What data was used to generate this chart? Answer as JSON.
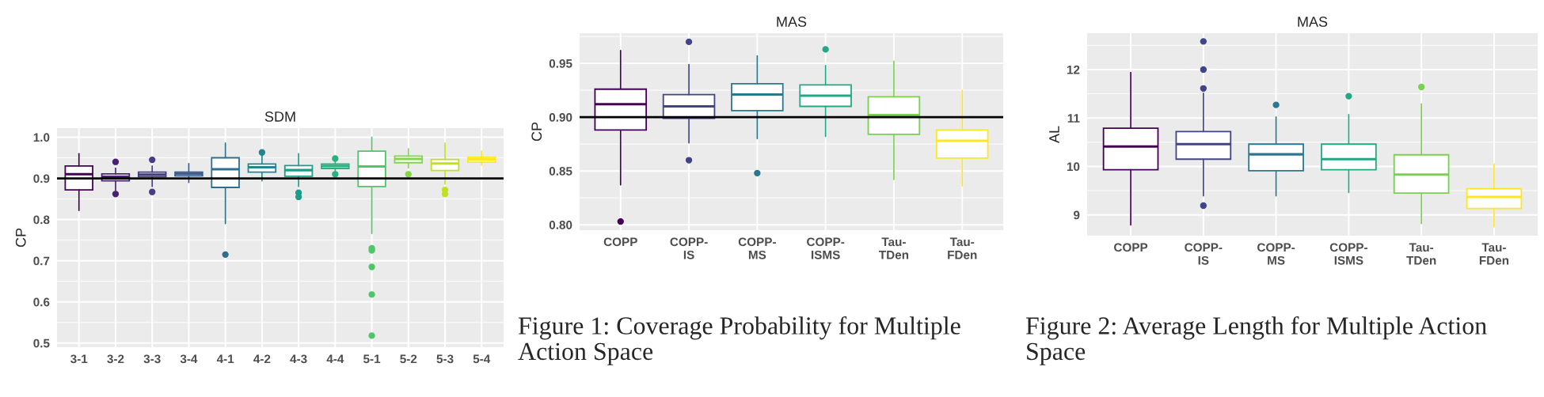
{
  "chart_data": [
    {
      "type": "box",
      "title": "SDM",
      "ylabel": "CP",
      "categories": [
        "3-1",
        "3-2",
        "3-3",
        "3-4",
        "4-1",
        "4-2",
        "4-3",
        "4-4",
        "5-1",
        "5-2",
        "5-3",
        "5-4"
      ],
      "colors": [
        "#440154",
        "#482173",
        "#433e85",
        "#38598c",
        "#2d708e",
        "#25858e",
        "#1e9b8a",
        "#2bb07f",
        "#51c56a",
        "#85d54a",
        "#c2df23",
        "#fde725"
      ],
      "boxes": [
        {
          "low": 0.822,
          "q1": 0.872,
          "median": 0.91,
          "q3": 0.93,
          "high": 0.96
        },
        {
          "low": 0.87,
          "q1": 0.894,
          "median": 0.904,
          "q3": 0.911,
          "high": 0.925,
          "outliers": [
            0.94,
            0.862
          ]
        },
        {
          "low": 0.88,
          "q1": 0.904,
          "median": 0.909,
          "q3": 0.915,
          "high": 0.93,
          "outliers": [
            0.945,
            0.867
          ]
        },
        {
          "low": 0.89,
          "q1": 0.906,
          "median": 0.911,
          "q3": 0.915,
          "high": 0.936
        },
        {
          "low": 0.79,
          "q1": 0.878,
          "median": 0.922,
          "q3": 0.95,
          "high": 0.986,
          "outliers": [
            0.715
          ]
        },
        {
          "low": 0.894,
          "q1": 0.915,
          "median": 0.927,
          "q3": 0.935,
          "high": 0.955,
          "outliers": [
            0.963
          ]
        },
        {
          "low": 0.88,
          "q1": 0.905,
          "median": 0.92,
          "q3": 0.931,
          "high": 0.96,
          "outliers": [
            0.865,
            0.855
          ]
        },
        {
          "low": 0.915,
          "q1": 0.924,
          "median": 0.93,
          "q3": 0.935,
          "high": 0.94,
          "outliers": [
            0.948,
            0.91
          ]
        },
        {
          "low": 0.766,
          "q1": 0.88,
          "median": 0.929,
          "q3": 0.966,
          "high": 1.0,
          "outliers": [
            0.73,
            0.725,
            0.685,
            0.618,
            0.518
          ]
        },
        {
          "low": 0.925,
          "q1": 0.938,
          "median": 0.947,
          "q3": 0.954,
          "high": 0.972,
          "outliers": [
            0.91
          ]
        },
        {
          "low": 0.886,
          "q1": 0.919,
          "median": 0.936,
          "q3": 0.946,
          "high": 0.986,
          "outliers": [
            0.872,
            0.862
          ]
        },
        {
          "low": 0.932,
          "q1": 0.939,
          "median": 0.946,
          "q3": 0.951,
          "high": 0.966
        }
      ],
      "ylim": [
        0.49,
        1.022
      ],
      "yticks": [
        0.5,
        0.6,
        0.7,
        0.8,
        0.9,
        {
          "value": 1,
          "label": "1.0"
        }
      ],
      "grid": true,
      "ref_lines": [
        {
          "axis": "y",
          "value": 0.9,
          "color": "#000000"
        }
      ]
    },
    {
      "type": "box",
      "title": "MAS",
      "ylabel": "CP",
      "categories": [
        "COPP",
        "COPP-IS",
        "COPP-MS",
        "COPP-ISMS",
        "Tau-TDen",
        "Tau-FDen"
      ],
      "colors": [
        "#440154",
        "#414487",
        "#2a788e",
        "#22a884",
        "#7ad151",
        "#fde725"
      ],
      "boxes": [
        {
          "low": 0.837,
          "q1": 0.888,
          "median": 0.912,
          "q3": 0.926,
          "high": 0.962,
          "outliers": [
            0.803
          ]
        },
        {
          "low": 0.876,
          "q1": 0.899,
          "median": 0.91,
          "q3": 0.921,
          "high": 0.949,
          "outliers": [
            0.97,
            0.86
          ]
        },
        {
          "low": 0.88,
          "q1": 0.906,
          "median": 0.921,
          "q3": 0.931,
          "high": 0.957,
          "outliers": [
            0.848
          ]
        },
        {
          "low": 0.882,
          "q1": 0.91,
          "median": 0.92,
          "q3": 0.93,
          "high": 0.948,
          "outliers": [
            0.963
          ]
        },
        {
          "low": 0.842,
          "q1": 0.884,
          "median": 0.902,
          "q3": 0.919,
          "high": 0.952
        },
        {
          "low": 0.836,
          "q1": 0.862,
          "median": 0.878,
          "q3": 0.888,
          "high": 0.925
        }
      ],
      "ylim": [
        0.795,
        0.978
      ],
      "yticks": [
        {
          "value": 0.8,
          "label": "0.80"
        },
        {
          "value": 0.85,
          "label": "0.85"
        },
        {
          "value": 0.9,
          "label": "0.90"
        },
        {
          "value": 0.95,
          "label": "0.95"
        }
      ],
      "grid": true,
      "ref_lines": [
        {
          "axis": "y",
          "value": 0.9,
          "color": "#000000"
        }
      ],
      "annotations": [
        "Figure 1: Coverage Probability for Multiple Action Space"
      ]
    },
    {
      "type": "box",
      "title": "MAS",
      "ylabel": "AL",
      "categories": [
        "COPP",
        "COPP-IS",
        "COPP-MS",
        "COPP-ISMS",
        "Tau-TDen",
        "Tau-FDen"
      ],
      "colors": [
        "#440154",
        "#414487",
        "#2a788e",
        "#22a884",
        "#7ad151",
        "#fde725"
      ],
      "boxes": [
        {
          "low": 8.79,
          "q1": 9.93,
          "median": 10.41,
          "q3": 10.79,
          "high": 11.94
        },
        {
          "low": 9.39,
          "q1": 10.15,
          "median": 10.46,
          "q3": 10.72,
          "high": 11.51,
          "outliers": [
            12.58,
            12.0,
            11.61,
            9.19
          ]
        },
        {
          "low": 9.39,
          "q1": 9.91,
          "median": 10.25,
          "q3": 10.46,
          "high": 11.02,
          "outliers": [
            11.27
          ]
        },
        {
          "low": 9.46,
          "q1": 9.93,
          "median": 10.15,
          "q3": 10.46,
          "high": 11.07,
          "outliers": [
            11.45
          ]
        },
        {
          "low": 8.82,
          "q1": 9.45,
          "median": 9.83,
          "q3": 10.24,
          "high": 11.29,
          "outliers": [
            11.64
          ]
        },
        {
          "low": 8.75,
          "q1": 9.13,
          "median": 9.37,
          "q3": 9.54,
          "high": 10.05
        }
      ],
      "ylim": [
        8.57,
        12.75
      ],
      "yticks": [
        9,
        10,
        11,
        12
      ],
      "grid": true,
      "annotations": [
        "Figure 2: Average Length for Multiple Action Space"
      ]
    }
  ]
}
